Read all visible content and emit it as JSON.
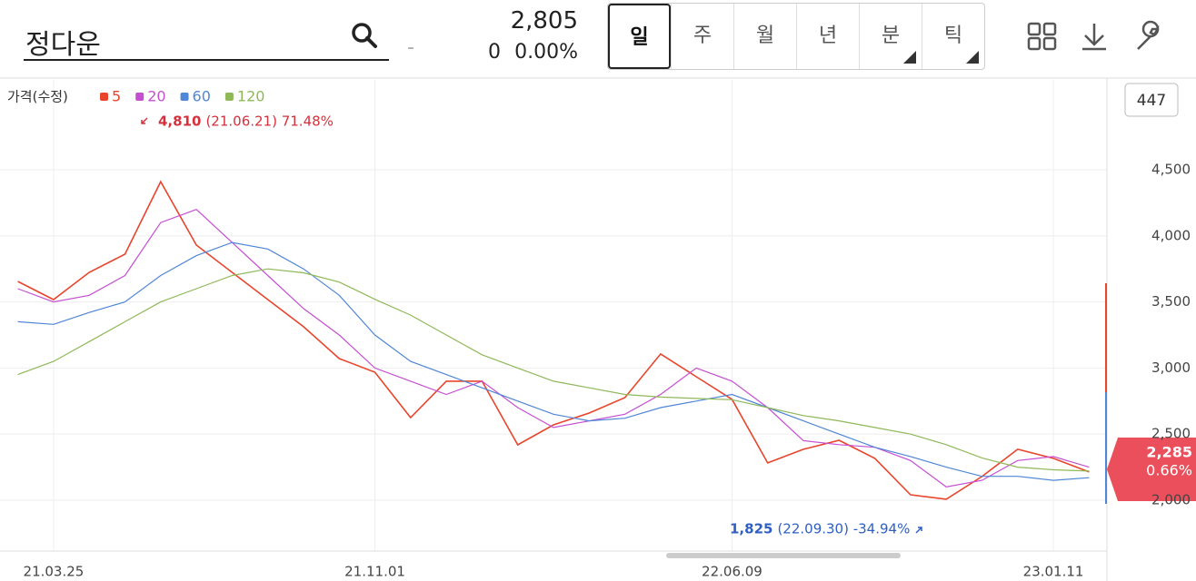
{
  "header": {
    "search": "정다운",
    "price": "2,805",
    "change": "0",
    "change_rate": "0.00%",
    "dash": "-",
    "tabs": [
      "일",
      "주",
      "월",
      "년",
      "분",
      "틱"
    ]
  },
  "badge": "447",
  "price_tag": {
    "price": "2,285",
    "rate": "0.66%"
  },
  "chart_data": {
    "type": "line",
    "legend_title": "가격(수정)",
    "categories": [
      null,
      "21.03.25",
      null,
      null,
      null,
      null,
      null,
      null,
      null,
      null,
      "21.11.01",
      null,
      null,
      null,
      null,
      null,
      null,
      null,
      null,
      null,
      "22.06.09",
      null,
      null,
      null,
      null,
      null,
      null,
      null,
      null,
      "23.01.11",
      null
    ],
    "series": [
      {
        "name": "5",
        "color": "#e8452c",
        "values": [
          3655,
          3518,
          3724,
          3861,
          4410,
          3930,
          3724,
          3518,
          3312,
          3071,
          2968,
          2625,
          2900,
          2900,
          2419,
          2570,
          2659,
          2776,
          3106,
          2934,
          2762,
          2282,
          2385,
          2453,
          2316,
          2041,
          2007,
          2179,
          2385,
          2316,
          2213
        ]
      },
      {
        "name": "20",
        "color": "#c54fd1",
        "values": [
          3600,
          3500,
          3550,
          3700,
          4100,
          4200,
          3950,
          3700,
          3450,
          3250,
          3000,
          2900,
          2800,
          2900,
          2700,
          2550,
          2600,
          2650,
          2800,
          3000,
          2900,
          2700,
          2450,
          2420,
          2400,
          2300,
          2100,
          2150,
          2300,
          2330,
          2250
        ]
      },
      {
        "name": "60",
        "color": "#4f86d6",
        "values": [
          3350,
          3330,
          3420,
          3500,
          3700,
          3850,
          3950,
          3900,
          3750,
          3550,
          3250,
          3050,
          2950,
          2850,
          2750,
          2650,
          2600,
          2620,
          2700,
          2750,
          2800,
          2700,
          2600,
          2500,
          2400,
          2330,
          2250,
          2180,
          2180,
          2150,
          2170
        ]
      },
      {
        "name": "120",
        "color": "#8fb859",
        "values": [
          2950,
          3050,
          3200,
          3350,
          3500,
          3600,
          3700,
          3750,
          3720,
          3650,
          3520,
          3400,
          3250,
          3100,
          3000,
          2900,
          2850,
          2800,
          2780,
          2770,
          2760,
          2700,
          2640,
          2600,
          2550,
          2500,
          2420,
          2320,
          2250,
          2230,
          2220
        ]
      }
    ],
    "ylim": [
      1615,
      5180
    ],
    "yticks": [
      {
        "value": 2000,
        "label": "2,000"
      },
      {
        "value": 2500,
        "label": "2,500"
      },
      {
        "value": 3000,
        "label": "3,000"
      },
      {
        "value": 3500,
        "label": "3,500"
      },
      {
        "value": 4000,
        "label": "4,000"
      },
      {
        "value": 4500,
        "label": "4,500"
      }
    ],
    "grid": true,
    "annotations": [
      {
        "value": "4,810",
        "detail": "(21.06.21) 71.48%",
        "color": "#d6303c"
      },
      {
        "value": "1,825",
        "detail": "(22.09.30) -34.94%",
        "color": "#2f5fc4"
      }
    ]
  }
}
